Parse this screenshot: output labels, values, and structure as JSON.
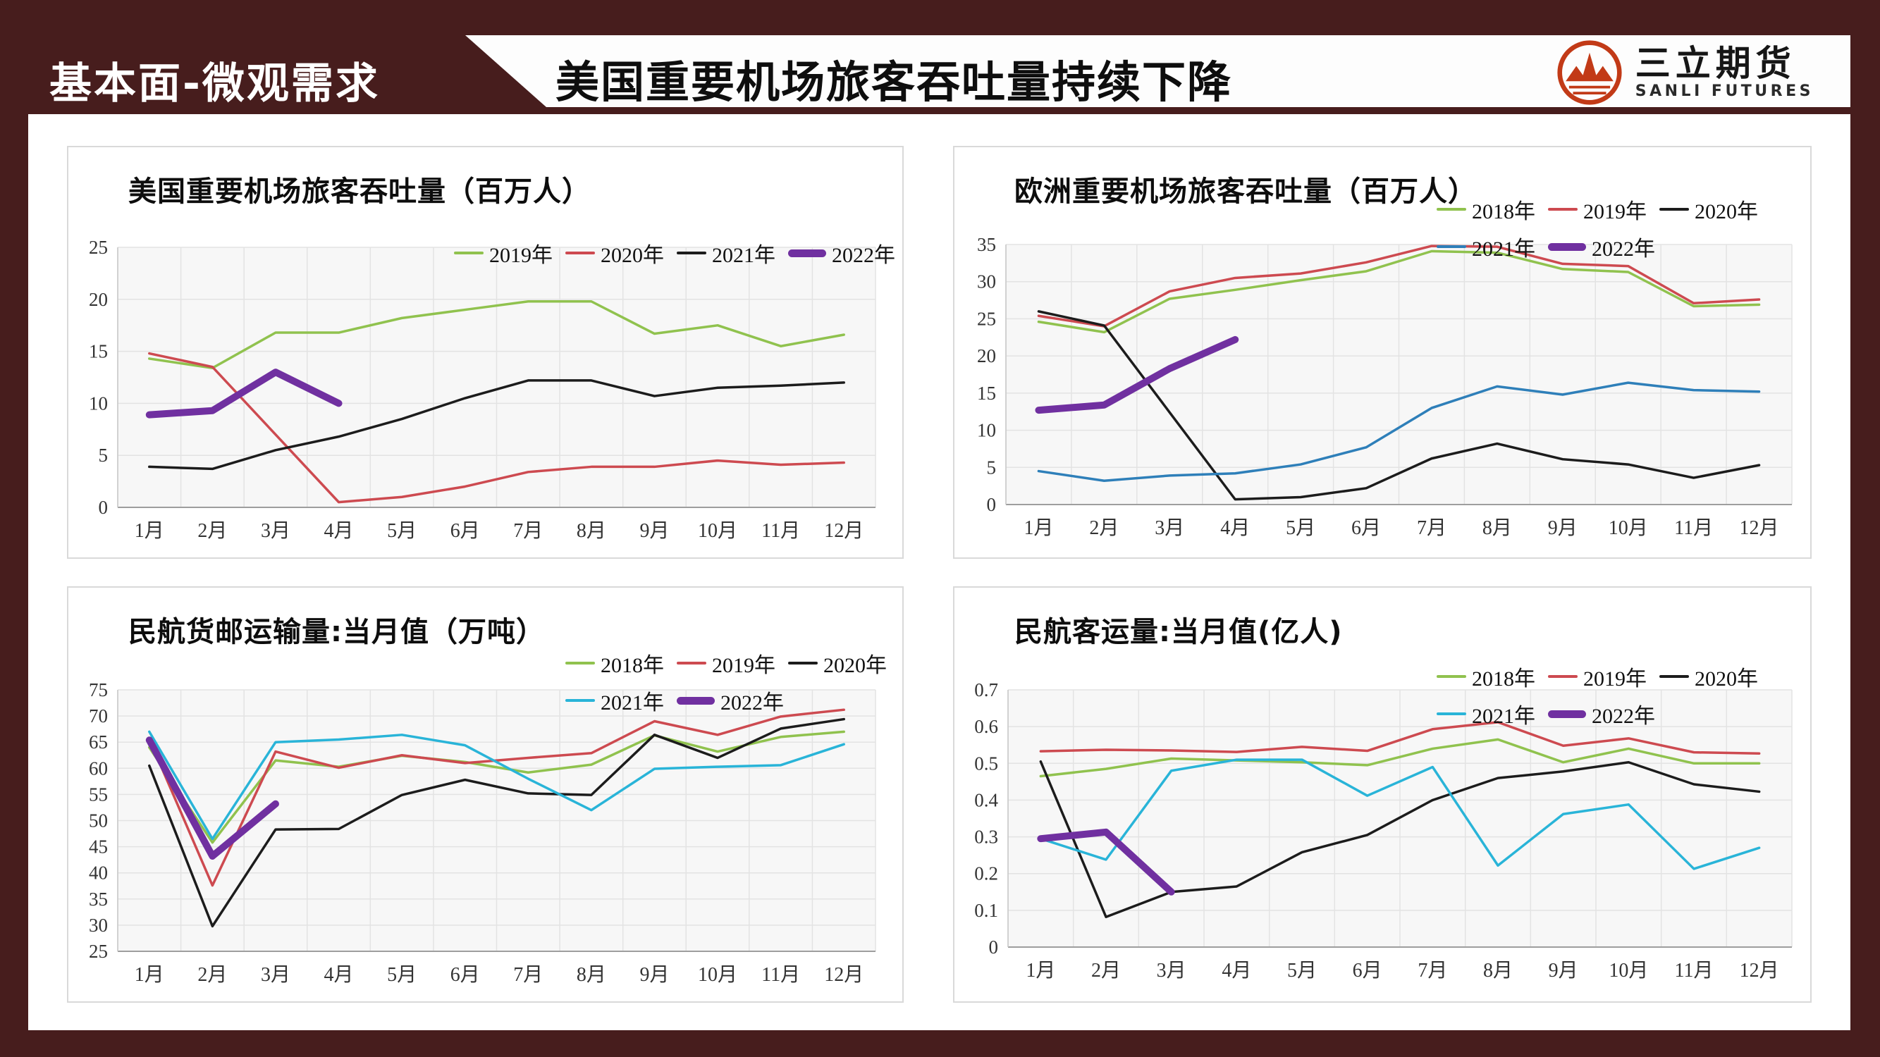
{
  "header": {
    "section_label": "基本面-微观需求",
    "slide_title": "美国重要机场旅客吞吐量持续下降",
    "logo_cn": "三立期货",
    "logo_en": "SANLI FUTURES",
    "banner_color": "#471d1d",
    "logo_color": "#c23a17"
  },
  "months": [
    "1月",
    "2月",
    "3月",
    "4月",
    "5月",
    "6月",
    "7月",
    "8月",
    "9月",
    "10月",
    "11月",
    "12月"
  ],
  "chart_data": [
    {
      "type": "line",
      "title": "美国重要机场旅客吞吐量（百万人）",
      "xlabel": "",
      "ylabel": "",
      "ymin": 0,
      "ymax": 25,
      "yticks": [
        "0",
        "5",
        "10",
        "15",
        "20",
        "25"
      ],
      "grid": true,
      "legend_position": "top-right-single-row",
      "legend_rows": [
        [
          "2019年",
          "2020年",
          "2021年",
          "2022年"
        ]
      ],
      "series": [
        {
          "name": "2019年",
          "color": "#90c24e",
          "thick": false,
          "values": [
            14.3,
            13.4,
            16.8,
            16.8,
            18.2,
            19,
            19.8,
            19.8,
            16.7,
            17.5,
            15.5,
            16.6
          ]
        },
        {
          "name": "2020年",
          "color": "#cd4a50",
          "thick": false,
          "values": [
            14.8,
            13.5,
            7,
            0.5,
            1,
            2,
            3.4,
            3.9,
            3.9,
            4.5,
            4.1,
            4.3
          ]
        },
        {
          "name": "2021年",
          "color": "#1c1c1c",
          "thick": false,
          "values": [
            3.9,
            3.7,
            5.5,
            6.8,
            8.5,
            10.5,
            12.2,
            12.2,
            10.7,
            11.5,
            11.7,
            12
          ]
        },
        {
          "name": "2022年",
          "color": "#7030a0",
          "thick": true,
          "values": [
            8.9,
            9.3,
            13,
            10,
            null,
            null,
            null,
            null,
            null,
            null,
            null,
            null
          ]
        }
      ]
    },
    {
      "type": "line",
      "title": "欧洲重要机场旅客吞吐量（百万人）",
      "xlabel": "",
      "ylabel": "",
      "ymin": 0,
      "ymax": 35,
      "yticks": [
        "0",
        "5",
        "10",
        "15",
        "20",
        "25",
        "30",
        "35"
      ],
      "grid": true,
      "legend_position": "top-right-two-rows",
      "legend_rows": [
        [
          "2018年",
          "2019年",
          "2020年"
        ],
        [
          "2021年",
          "2022年"
        ]
      ],
      "series": [
        {
          "name": "2018年",
          "color": "#90c24e",
          "thick": false,
          "values": [
            24.6,
            23.2,
            27.7,
            28.9,
            30.2,
            31.4,
            34.1,
            33.9,
            31.7,
            31.3,
            26.7,
            26.9
          ]
        },
        {
          "name": "2019年",
          "color": "#cd4a50",
          "thick": false,
          "values": [
            25.4,
            24,
            28.7,
            30.5,
            31.1,
            32.6,
            34.8,
            34.7,
            32.4,
            32.1,
            27.1,
            27.6
          ]
        },
        {
          "name": "2020年",
          "color": "#1c1c1c",
          "thick": false,
          "values": [
            26,
            24.1,
            12.4,
            0.7,
            1,
            2.2,
            6.2,
            8.2,
            6.1,
            5.4,
            3.6,
            5.3
          ]
        },
        {
          "name": "2021年",
          "color": "#2e7fb9",
          "thick": false,
          "values": [
            4.5,
            3.2,
            3.9,
            4.2,
            5.4,
            7.7,
            13,
            15.9,
            14.8,
            16.4,
            15.4,
            15.2
          ]
        },
        {
          "name": "2022年",
          "color": "#7030a0",
          "thick": true,
          "values": [
            12.7,
            13.4,
            18.3,
            22.2,
            null,
            null,
            null,
            null,
            null,
            null,
            null,
            null
          ]
        }
      ]
    },
    {
      "type": "line",
      "title": "民航货邮运输量:当月值（万吨）",
      "xlabel": "",
      "ylabel": "",
      "ymin": 25,
      "ymax": 75,
      "yticks": [
        "25",
        "30",
        "35",
        "40",
        "45",
        "50",
        "55",
        "60",
        "65",
        "70",
        "75"
      ],
      "grid": true,
      "legend_position": "top-right-two-rows",
      "legend_rows": [
        [
          "2018年",
          "2019年",
          "2020年"
        ],
        [
          "2021年",
          "2022年"
        ]
      ],
      "series": [
        {
          "name": "2018年",
          "color": "#90c24e",
          "thick": false,
          "values": [
            64,
            45.8,
            61.5,
            60.3,
            62.4,
            61.2,
            59.2,
            60.7,
            66.3,
            63.2,
            66,
            67
          ]
        },
        {
          "name": "2019年",
          "color": "#cd4a50",
          "thick": false,
          "values": [
            65.6,
            37.6,
            63.2,
            60.1,
            62.5,
            61,
            62,
            62.9,
            69,
            66.4,
            69.9,
            71.2
          ]
        },
        {
          "name": "2020年",
          "color": "#1c1c1c",
          "thick": false,
          "values": [
            60.5,
            29.8,
            48.3,
            48.4,
            54.9,
            57.8,
            55.2,
            54.9,
            66.4,
            62,
            67.6,
            69.4
          ]
        },
        {
          "name": "2021年",
          "color": "#29b4d8",
          "thick": false,
          "values": [
            67,
            46.5,
            65,
            65.5,
            66.4,
            64.4,
            58,
            52,
            59.9,
            60.3,
            60.6,
            64.6
          ]
        },
        {
          "name": "2022年",
          "color": "#7030a0",
          "thick": true,
          "values": [
            65.4,
            43.2,
            53.2,
            null,
            null,
            null,
            null,
            null,
            null,
            null,
            null,
            null
          ]
        }
      ]
    },
    {
      "type": "line",
      "title": "民航客运量:当月值(亿人)",
      "xlabel": "",
      "ylabel": "",
      "ymin": 0,
      "ymax": 0.7,
      "yticks": [
        "0",
        "0.1",
        "0.2",
        "0.3",
        "0.4",
        "0.5",
        "0.6",
        "0.7"
      ],
      "grid": true,
      "legend_position": "top-right-two-rows",
      "legend_rows": [
        [
          "2018年",
          "2019年",
          "2020年"
        ],
        [
          "2021年",
          "2022年"
        ]
      ],
      "series": [
        {
          "name": "2018年",
          "color": "#90c24e",
          "thick": false,
          "values": [
            0.465,
            0.485,
            0.513,
            0.508,
            0.503,
            0.495,
            0.54,
            0.565,
            0.503,
            0.54,
            0.5,
            0.5
          ]
        },
        {
          "name": "2019年",
          "color": "#cd4a50",
          "thick": false,
          "values": [
            0.533,
            0.537,
            0.535,
            0.531,
            0.545,
            0.534,
            0.593,
            0.612,
            0.548,
            0.568,
            0.53,
            0.527
          ]
        },
        {
          "name": "2020年",
          "color": "#1c1c1c",
          "thick": false,
          "values": [
            0.505,
            0.082,
            0.15,
            0.165,
            0.258,
            0.305,
            0.4,
            0.46,
            0.478,
            0.503,
            0.443,
            0.423
          ]
        },
        {
          "name": "2021年",
          "color": "#29b4d8",
          "thick": false,
          "values": [
            0.295,
            0.238,
            0.48,
            0.51,
            0.51,
            0.412,
            0.49,
            0.222,
            0.362,
            0.388,
            0.213,
            0.27
          ]
        },
        {
          "name": "2022年",
          "color": "#7030a0",
          "thick": true,
          "values": [
            0.295,
            0.313,
            0.15,
            null,
            null,
            null,
            null,
            null,
            null,
            null,
            null,
            null
          ]
        }
      ]
    }
  ]
}
